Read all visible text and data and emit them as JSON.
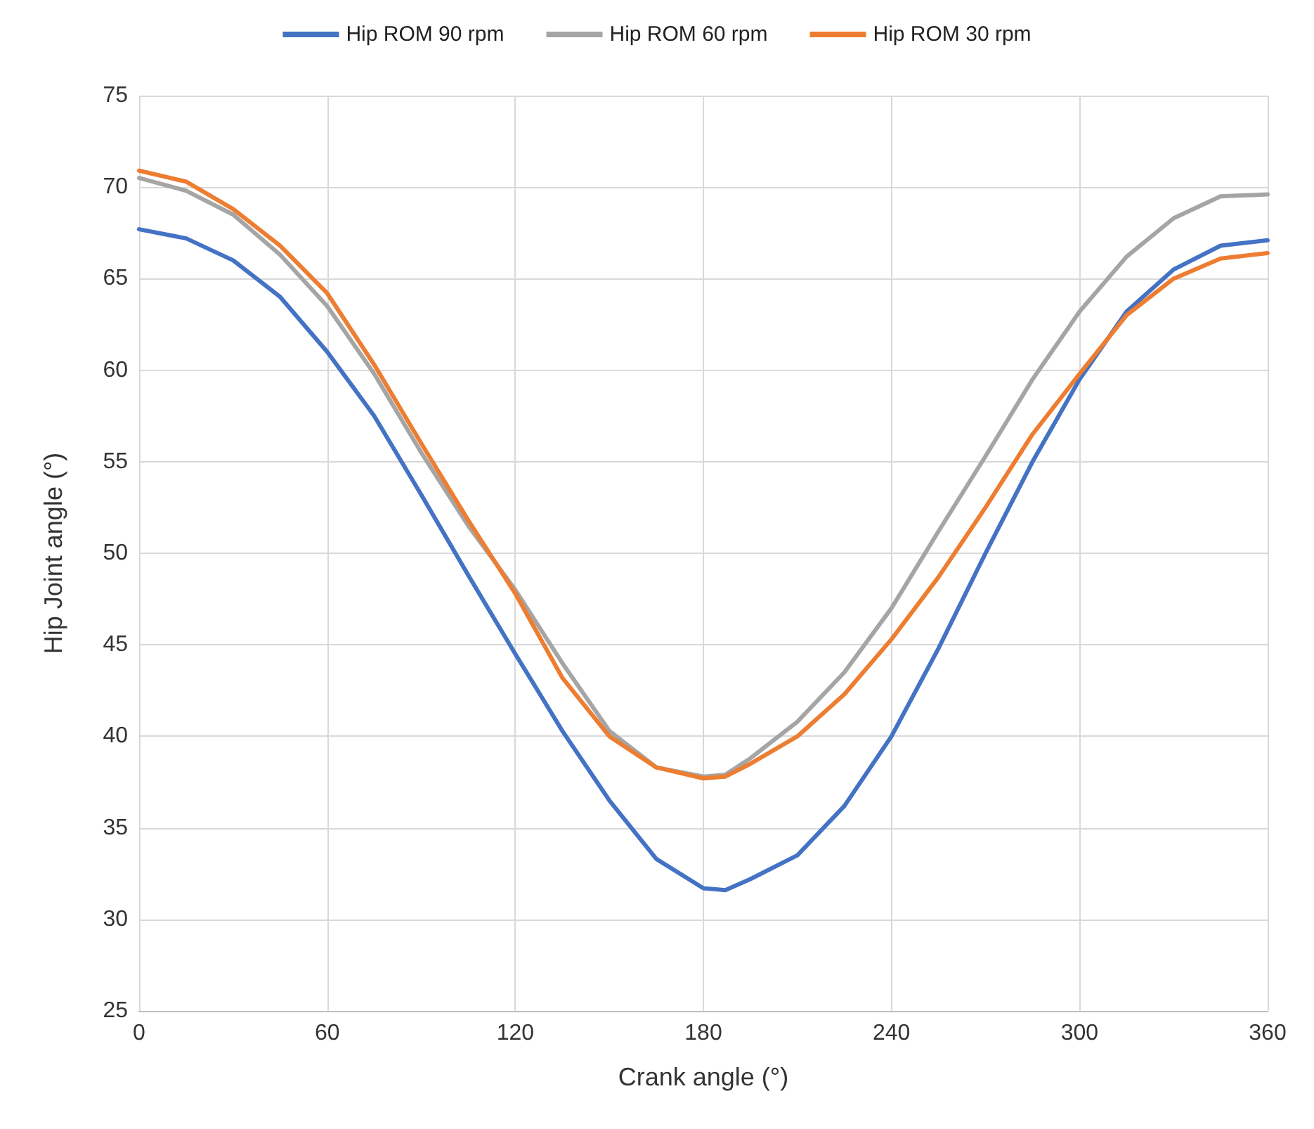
{
  "chart_data": {
    "type": "line",
    "xlabel": "Crank angle (°)",
    "ylabel": "Hip Joint angle (°)",
    "x": [
      0,
      15,
      30,
      45,
      60,
      75,
      90,
      105,
      120,
      135,
      150,
      165,
      180,
      187,
      195,
      210,
      225,
      240,
      255,
      270,
      285,
      300,
      315,
      330,
      345,
      360
    ],
    "series": [
      {
        "name": "Hip ROM 90 rpm",
        "color": "#4472c4",
        "values": [
          67.7,
          67.2,
          66,
          64,
          61,
          57.5,
          53.2,
          48.8,
          44.5,
          40.3,
          36.5,
          33.3,
          31.7,
          31.6,
          32.2,
          33.5,
          36.2,
          40,
          44.8,
          50,
          55,
          59.5,
          63.2,
          65.5,
          66.8,
          67.1
        ]
      },
      {
        "name": "Hip ROM 60 rpm",
        "color": "#a5a5a5",
        "values": [
          70.5,
          69.8,
          68.5,
          66.3,
          63.5,
          59.8,
          55.5,
          51.5,
          48,
          44,
          40.3,
          38.3,
          37.8,
          37.9,
          38.8,
          40.8,
          43.5,
          47,
          51.2,
          55.3,
          59.5,
          63.2,
          66.2,
          68.3,
          69.5,
          69.6
        ]
      },
      {
        "name": "Hip ROM 30 rpm",
        "color": "#ed7d31",
        "values": [
          70.9,
          70.3,
          68.8,
          66.8,
          64.2,
          60.3,
          56,
          51.8,
          47.8,
          43.2,
          40,
          38.3,
          37.7,
          37.8,
          38.5,
          40,
          42.3,
          45.3,
          48.7,
          52.5,
          56.5,
          59.8,
          63,
          65,
          66.1,
          66.4
        ]
      }
    ],
    "xlim": [
      0,
      360
    ],
    "xticks": [
      0,
      60,
      120,
      180,
      240,
      300,
      360
    ],
    "ylim": [
      25,
      75
    ],
    "yticks": [
      25,
      30,
      35,
      40,
      45,
      50,
      55,
      60,
      65,
      70,
      75
    ],
    "grid": true,
    "legend": "top",
    "marker": "none",
    "line_style": "solid"
  }
}
